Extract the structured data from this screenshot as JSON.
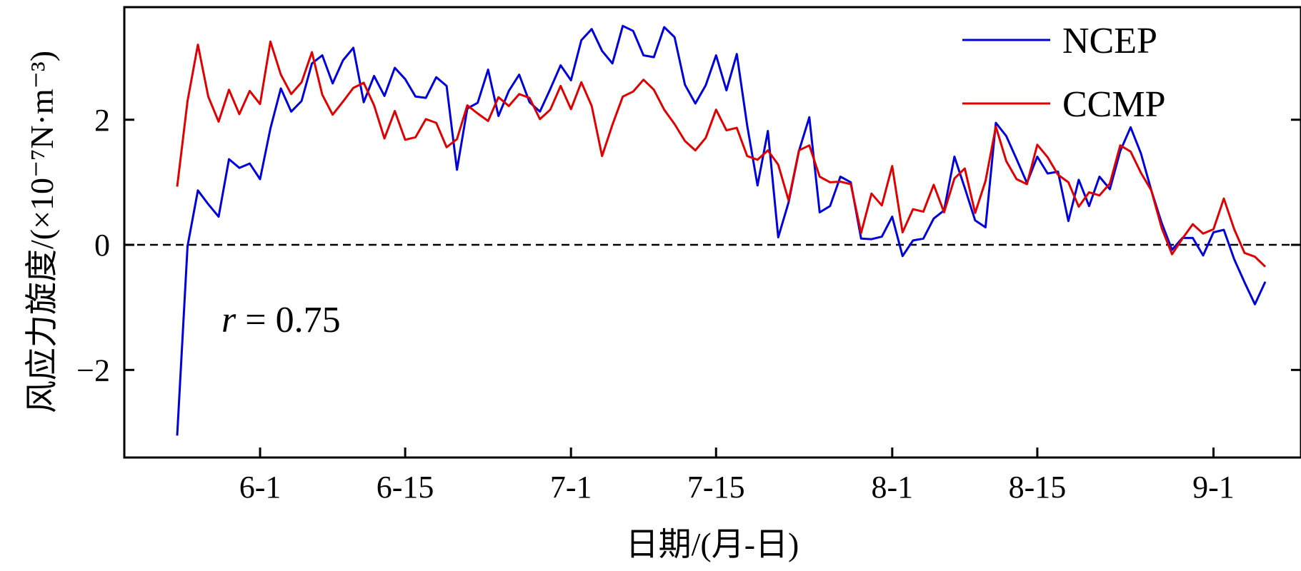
{
  "chart_data": {
    "type": "line",
    "xlabel": "日期/(月-日)",
    "ylabel": "风应力旋度/(×10⁻⁷N·m⁻³)",
    "x_ticks": [
      "6-1",
      "6-15",
      "7-1",
      "7-15",
      "8-1",
      "8-15",
      "9-1"
    ],
    "y_ticks": [
      "−2",
      "0",
      "2"
    ],
    "ylim": [
      -3.4,
      3.8
    ],
    "reference_line": 0,
    "annotation": {
      "var": "r",
      "text": " = 0.75"
    },
    "legend": {
      "position": "top-right"
    },
    "grid": false,
    "series": [
      {
        "name": "NCEP",
        "color": "#0000dd",
        "values": [
          -3.05,
          -0.02,
          0.87,
          0.65,
          0.45,
          1.37,
          1.23,
          1.3,
          1.05,
          1.86,
          2.5,
          2.13,
          2.3,
          2.9,
          3.03,
          2.58,
          2.95,
          3.15,
          2.28,
          2.7,
          2.38,
          2.83,
          2.65,
          2.37,
          2.35,
          2.68,
          2.54,
          1.2,
          2.18,
          2.27,
          2.8,
          2.06,
          2.46,
          2.72,
          2.28,
          2.13,
          2.49,
          2.87,
          2.63,
          3.27,
          3.45,
          3.1,
          2.9,
          3.5,
          3.42,
          3.03,
          3.0,
          3.48,
          3.32,
          2.56,
          2.26,
          2.55,
          3.03,
          2.47,
          3.05,
          1.91,
          0.95,
          1.82,
          0.12,
          0.68,
          1.5,
          2.04,
          0.52,
          0.62,
          1.09,
          1.0,
          0.1,
          0.09,
          0.13,
          0.45,
          -0.18,
          0.07,
          0.1,
          0.42,
          0.55,
          1.41,
          0.91,
          0.39,
          0.28,
          1.95,
          1.74,
          1.37,
          0.99,
          1.41,
          1.14,
          1.17,
          0.38,
          1.04,
          0.62,
          1.09,
          0.89,
          1.5,
          1.88,
          1.46,
          0.87,
          0.35,
          -0.08,
          0.11,
          0.11,
          -0.17,
          0.2,
          0.24,
          -0.23,
          -0.6,
          -0.95,
          -0.59
        ]
      },
      {
        "name": "CCMP",
        "color": "#e00000",
        "values": [
          0.93,
          2.3,
          3.2,
          2.37,
          1.97,
          2.48,
          2.09,
          2.46,
          2.25,
          3.25,
          2.72,
          2.41,
          2.6,
          3.08,
          2.4,
          2.08,
          2.29,
          2.51,
          2.59,
          2.23,
          1.7,
          2.14,
          1.68,
          1.72,
          2.01,
          1.95,
          1.56,
          1.69,
          2.23,
          2.1,
          1.98,
          2.36,
          2.22,
          2.41,
          2.35,
          2.01,
          2.16,
          2.54,
          2.17,
          2.6,
          2.22,
          1.42,
          1.92,
          2.37,
          2.45,
          2.64,
          2.48,
          2.16,
          1.93,
          1.66,
          1.51,
          1.71,
          2.16,
          1.83,
          1.87,
          1.42,
          1.36,
          1.51,
          1.28,
          0.71,
          1.51,
          1.59,
          1.09,
          1.0,
          1.01,
          0.97,
          0.19,
          0.82,
          0.63,
          1.26,
          0.2,
          0.57,
          0.53,
          0.96,
          0.52,
          1.06,
          1.22,
          0.51,
          1.02,
          1.89,
          1.34,
          1.05,
          0.97,
          1.6,
          1.4,
          1.12,
          1.0,
          0.61,
          0.84,
          0.79,
          0.98,
          1.59,
          1.49,
          1.15,
          0.87,
          0.27,
          -0.15,
          0.1,
          0.33,
          0.18,
          0.25,
          0.74,
          0.25,
          -0.13,
          -0.19,
          -0.35
        ]
      }
    ]
  }
}
